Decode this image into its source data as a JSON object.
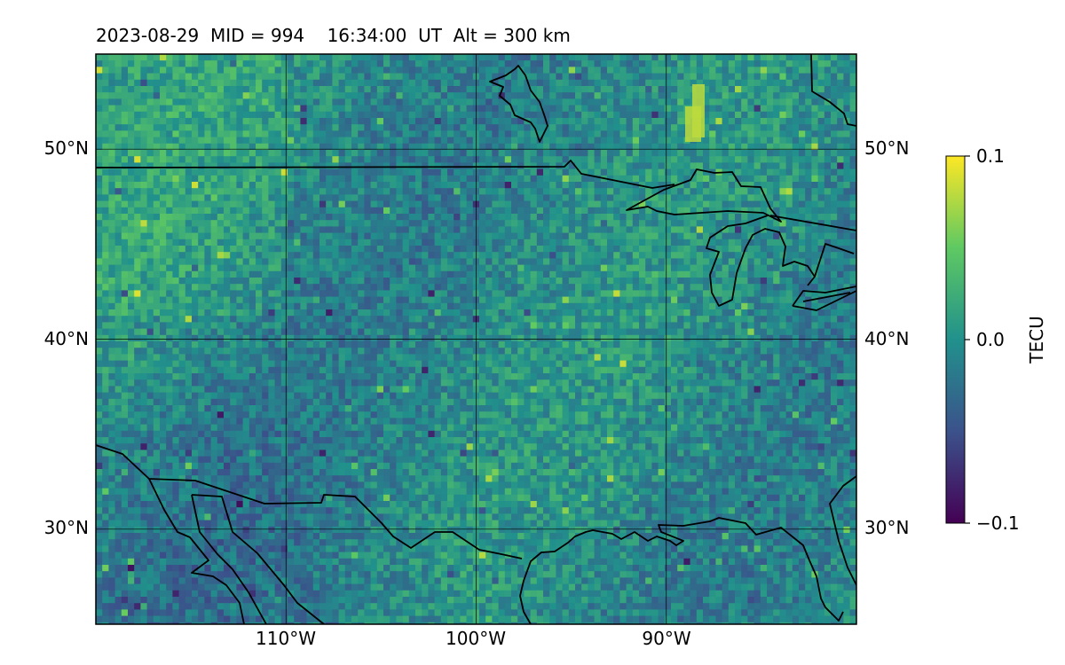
{
  "title": "2023-08-29  MID = 994    16:34:00  UT  Alt = 300 km",
  "map": {
    "projection": "equirectangular",
    "region": "Central & Eastern United States / Great Lakes / Gulf of Mexico",
    "longitude_range": [
      -120,
      -80
    ],
    "latitude_range": [
      25,
      55
    ],
    "lat_ticks": [
      {
        "value": 50,
        "label": "50°N"
      },
      {
        "value": 40,
        "label": "40°N"
      },
      {
        "value": 30,
        "label": "30°N"
      }
    ],
    "lon_ticks": [
      {
        "value": -110,
        "label": "110°W"
      },
      {
        "value": -100,
        "label": "100°W"
      },
      {
        "value": -90,
        "label": "90°W"
      }
    ],
    "gridlines": true,
    "coastlines": true,
    "country_borders": true,
    "field": "differential TEC (detrended)",
    "colormap": "viridis"
  },
  "colorbar": {
    "label": "TECU",
    "min": -0.1,
    "max": 0.1,
    "tick_labels": [
      "0.1",
      "0.0",
      "−0.1"
    ],
    "colors": [
      "#440154",
      "#3b528b",
      "#21918c",
      "#5ec962",
      "#fde725"
    ]
  }
}
